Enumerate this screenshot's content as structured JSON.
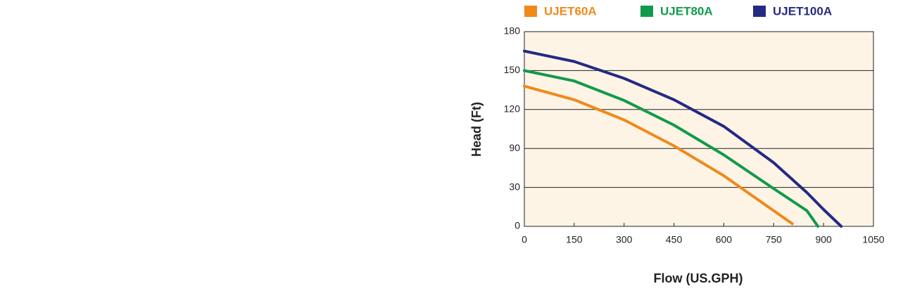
{
  "chart_data": {
    "type": "line",
    "x_label": "Flow (US.GPH)",
    "y_label": "Head (Ft)",
    "xlim": [
      0,
      1050
    ],
    "xticks": [
      0,
      150,
      300,
      450,
      600,
      750,
      900,
      1050
    ],
    "ylim": [
      30,
      180
    ],
    "yticks": [
      {
        "value": 30,
        "label": "0"
      },
      {
        "value": 60,
        "label": "30"
      },
      90,
      120,
      150,
      180
    ],
    "grid": true,
    "legend": "top",
    "series": [
      {
        "name": "UJET60A",
        "color": "#ef8a1a",
        "x": [
          0,
          150,
          300,
          450,
          600,
          700,
          806
        ],
        "values": [
          138,
          127.5,
          112,
          92,
          69,
          51,
          32
        ]
      },
      {
        "name": "UJET80A",
        "color": "#119a4b",
        "x": [
          0,
          150,
          300,
          450,
          600,
          750,
          850,
          883
        ],
        "values": [
          150,
          142,
          127,
          108,
          85,
          59,
          42,
          30
        ]
      },
      {
        "name": "UJET100A",
        "color": "#252a83",
        "x": [
          0,
          150,
          300,
          450,
          600,
          750,
          850,
          900,
          953
        ],
        "values": [
          165,
          157,
          144,
          127.5,
          107,
          79,
          56,
          43,
          30
        ]
      }
    ]
  }
}
